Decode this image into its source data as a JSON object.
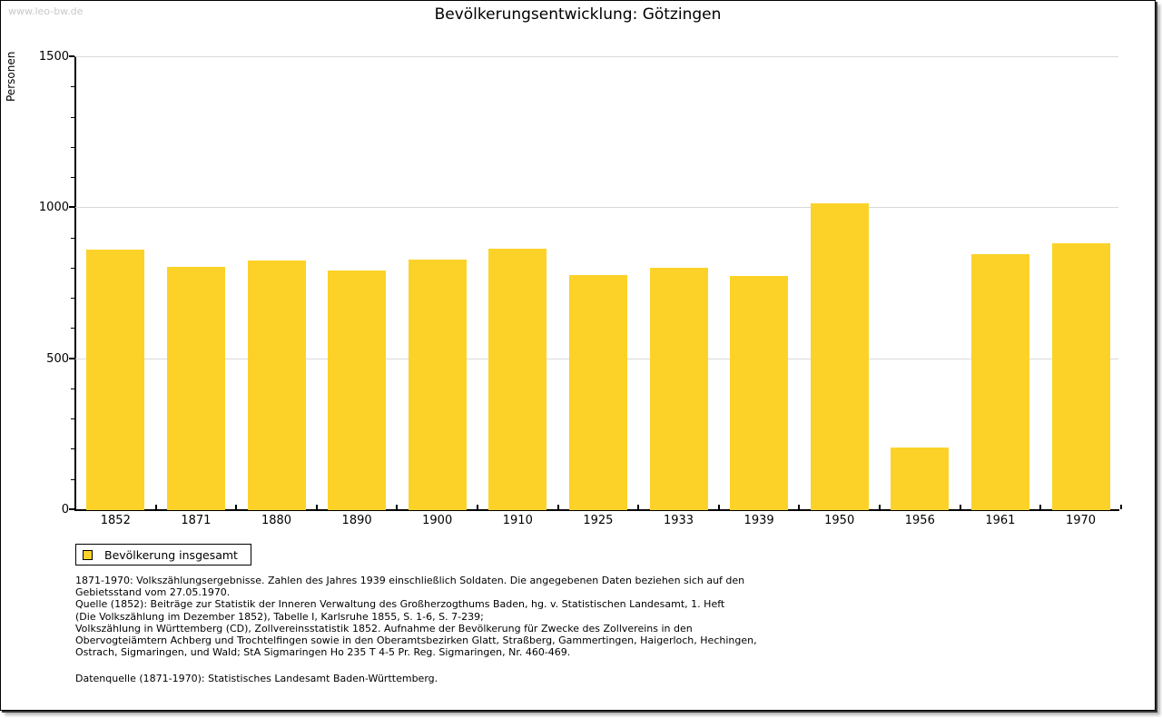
{
  "watermark": "www.leo-bw.de",
  "title": "Bevölkerungsentwicklung: Götzingen",
  "chart_data": {
    "type": "bar",
    "title": "Bevölkerungsentwicklung: Götzingen",
    "xlabel": "",
    "ylabel": "Personen",
    "ylim": [
      0,
      1500
    ],
    "yticks_major": [
      0,
      500,
      1000,
      1500
    ],
    "ytick_labels": [
      "0",
      "500",
      "1000",
      "1500"
    ],
    "ytick_minor_step": 100,
    "grid": "horizontal gridlines at 500, 1000, 1500 in light gray",
    "legend_position": "below chart, left, boxed",
    "categories": [
      "1852",
      "1871",
      "1880",
      "1890",
      "1900",
      "1910",
      "1925",
      "1933",
      "1939",
      "1950",
      "1956",
      "1961",
      "1970"
    ],
    "values": [
      860,
      802,
      824,
      792,
      827,
      864,
      776,
      799,
      772,
      1014,
      205,
      845,
      882
    ],
    "bar_color": "#FCD229",
    "legend": {
      "label": "Bevölkerung insgesamt",
      "swatch_color": "#FCD229"
    }
  },
  "footnotes": {
    "lines": [
      "1871-1970: Volkszählungsergebnisse. Zahlen des Jahres 1939 einschließlich Soldaten. Die angegebenen Daten beziehen sich auf den",
      "Gebietsstand vom 27.05.1970.",
      "Quelle (1852): Beiträge zur Statistik der Inneren Verwaltung des Großherzogthums Baden, hg. v. Statistischen Landesamt, 1. Heft",
      "(Die Volkszählung im Dezember 1852), Tabelle I, Karlsruhe 1855, S. 1-6, S. 7-239;",
      "Volkszählung in Württemberg (CD), Zollvereinsstatistik 1852. Aufnahme der Bevölkerung für Zwecke des Zollvereins in den",
      "Obervogteiämtern Achberg und Trochtelfingen sowie in den Oberamtsbezirken Glatt, Straßberg, Gammertingen, Haigerloch, Hechingen,",
      "Ostrach, Sigmaringen, und Wald; StA Sigmaringen Ho 235 T 4-5 Pr. Reg. Sigmaringen, Nr. 460-469."
    ],
    "datasource": "Datenquelle (1871-1970): Statistisches Landesamt Baden-Württemberg."
  },
  "colors": {
    "bar": "#FCD229",
    "gridline": "#D9D9D9",
    "axis": "#000000",
    "watermark": "#C9C9C9",
    "background": "#FFFFFF"
  }
}
